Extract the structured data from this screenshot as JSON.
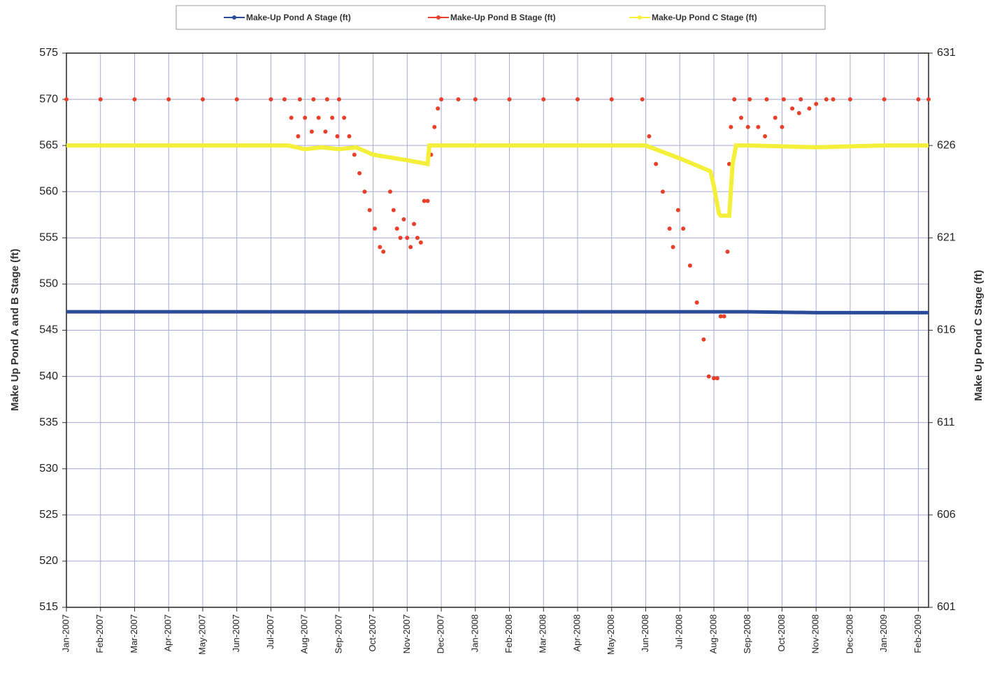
{
  "chart_data": {
    "type": "line",
    "y_label": "Make Up Pond A and B Stage (ft)",
    "y2_label": "Make Up Pond C Stage (ft)",
    "xlim": [
      0,
      25.3
    ],
    "xticks": [
      {
        "value": 0,
        "label": "Jan-2007"
      },
      {
        "value": 1,
        "label": "Feb-2007"
      },
      {
        "value": 2,
        "label": "Mar-2007"
      },
      {
        "value": 3,
        "label": "Apr-2007"
      },
      {
        "value": 4,
        "label": "May-2007"
      },
      {
        "value": 5,
        "label": "Jun-2007"
      },
      {
        "value": 6,
        "label": "Jul-2007"
      },
      {
        "value": 7,
        "label": "Aug-2007"
      },
      {
        "value": 8,
        "label": "Sep-2007"
      },
      {
        "value": 9,
        "label": "Oct-2007"
      },
      {
        "value": 10,
        "label": "Nov-2007"
      },
      {
        "value": 11,
        "label": "Dec-2007"
      },
      {
        "value": 12,
        "label": "Jan-2008"
      },
      {
        "value": 13,
        "label": "Feb-2008"
      },
      {
        "value": 14,
        "label": "Mar-2008"
      },
      {
        "value": 15,
        "label": "Apr-2008"
      },
      {
        "value": 16,
        "label": "May-2008"
      },
      {
        "value": 17,
        "label": "Jun-2008"
      },
      {
        "value": 18,
        "label": "Jul-2008"
      },
      {
        "value": 19,
        "label": "Aug-2008"
      },
      {
        "value": 20,
        "label": "Sep-2008"
      },
      {
        "value": 21,
        "label": "Oct-2008"
      },
      {
        "value": 22,
        "label": "Nov-2008"
      },
      {
        "value": 23,
        "label": "Dec-2008"
      },
      {
        "value": 24,
        "label": "Jan-2009"
      },
      {
        "value": 25,
        "label": "Feb-2009"
      }
    ],
    "ylim": [
      515,
      575
    ],
    "yticks": [
      515,
      520,
      525,
      530,
      535,
      540,
      545,
      550,
      555,
      560,
      565,
      570,
      575
    ],
    "y2lim": [
      601,
      631
    ],
    "y2ticks": [
      601,
      606,
      611,
      616,
      621,
      626,
      631
    ],
    "grid": true,
    "legend": "top",
    "series": [
      {
        "name": "Make-Up Pond A Stage (ft)",
        "color": "#2a4a9a",
        "style": "line",
        "x": [
          0,
          2,
          4,
          6,
          8,
          10,
          12,
          14,
          16,
          18,
          20,
          22,
          24,
          25.3
        ],
        "values": [
          547,
          547,
          547,
          547,
          547,
          547,
          547,
          547,
          547,
          547,
          547,
          546.9,
          546.9,
          546.9
        ]
      },
      {
        "name": "Make-Up Pond B Stage (ft)",
        "color": "#e8402a",
        "style": "dots",
        "x": [
          0,
          1,
          2,
          3,
          4,
          5,
          6,
          6.4,
          6.6,
          6.8,
          6.85,
          7.0,
          7.2,
          7.25,
          7.4,
          7.6,
          7.65,
          7.8,
          7.95,
          8.0,
          8.15,
          8.3,
          8.45,
          8.6,
          8.75,
          8.9,
          9.05,
          9.2,
          9.3,
          9.5,
          9.6,
          9.7,
          9.8,
          9.9,
          10.0,
          10.1,
          10.2,
          10.3,
          10.4,
          10.5,
          10.6,
          10.7,
          10.8,
          10.9,
          11.0,
          11.5,
          12,
          13,
          14,
          15,
          16,
          16.9,
          17.1,
          17.3,
          17.5,
          17.7,
          17.8,
          17.95,
          18.1,
          18.3,
          18.5,
          18.7,
          18.85,
          19.0,
          19.1,
          19.2,
          19.3,
          19.4,
          19.45,
          19.5,
          19.6,
          19.8,
          20.0,
          20.05,
          20.3,
          20.5,
          20.55,
          20.8,
          21.0,
          21.05,
          21.3,
          21.5,
          21.55,
          21.8,
          22.0,
          22.3,
          22.5,
          23,
          24,
          25,
          25.3
        ],
        "values": [
          570,
          570,
          570,
          570,
          570,
          570,
          570,
          570,
          568,
          566,
          570,
          568,
          566.5,
          570,
          568,
          566.5,
          570,
          568,
          566,
          570,
          568,
          566,
          564,
          562,
          560,
          558,
          556,
          554,
          553.5,
          560,
          558,
          556,
          555,
          557,
          555,
          554,
          556.5,
          555,
          554.5,
          559,
          559,
          564,
          567,
          569,
          570,
          570,
          570,
          570,
          570,
          570,
          570,
          570,
          566,
          563,
          560,
          556,
          554,
          558,
          556,
          552,
          548,
          544,
          540,
          539.8,
          539.8,
          546.5,
          546.5,
          553.5,
          563,
          567,
          570,
          568,
          567,
          570,
          567,
          566,
          570,
          568,
          567,
          570,
          569,
          568.5,
          570,
          569,
          569.5,
          570,
          570,
          570,
          570,
          570,
          570
        ]
      },
      {
        "name": "Make-Up Pond C Stage (ft)",
        "color": "#f4f03a",
        "style": "line",
        "axis": "y2",
        "x": [
          0,
          4,
          6.5,
          7,
          7.5,
          8,
          8.5,
          9,
          10,
          10.6,
          10.65,
          11,
          14,
          17,
          18,
          18.9,
          19.0,
          19.15,
          19.2,
          19.45,
          19.55,
          19.65,
          20,
          22,
          24,
          25.3
        ],
        "values": [
          626,
          626,
          626,
          625.8,
          625.9,
          625.8,
          625.9,
          625.5,
          625.2,
          625,
          626,
          626,
          626,
          626,
          625.3,
          624.6,
          623.8,
          622.3,
          622.2,
          622.2,
          625,
          626,
          626,
          625.9,
          626,
          626
        ]
      }
    ]
  }
}
